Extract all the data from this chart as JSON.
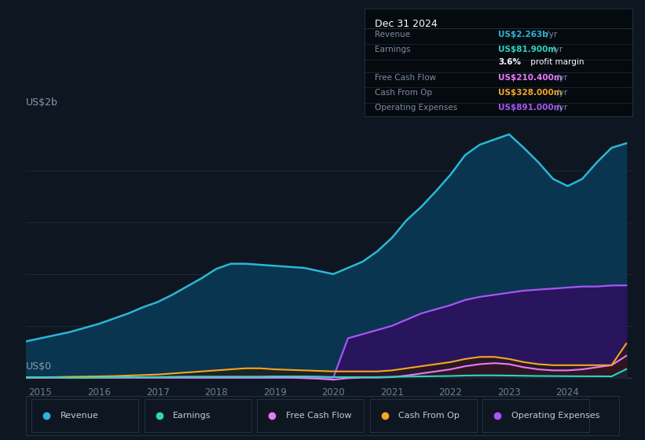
{
  "background_color": "#0e1621",
  "chart_bg_color": "#0e1621",
  "fig_width": 8.21,
  "fig_height": 5.6,
  "ylabel_text": "US$2b",
  "ylabel2_text": "US$0",
  "x_ticks": [
    2015,
    2016,
    2017,
    2018,
    2019,
    2020,
    2021,
    2022,
    2023,
    2024
  ],
  "years": [
    2014.75,
    2015.0,
    2015.25,
    2015.5,
    2015.75,
    2016.0,
    2016.25,
    2016.5,
    2016.75,
    2017.0,
    2017.25,
    2017.5,
    2017.75,
    2018.0,
    2018.25,
    2018.5,
    2018.75,
    2019.0,
    2019.25,
    2019.5,
    2019.75,
    2020.0,
    2020.25,
    2020.5,
    2020.75,
    2021.0,
    2021.25,
    2021.5,
    2021.75,
    2022.0,
    2022.25,
    2022.5,
    2022.75,
    2023.0,
    2023.25,
    2023.5,
    2023.75,
    2024.0,
    2024.25,
    2024.5,
    2024.75,
    2025.0
  ],
  "revenue": [
    0.35,
    0.38,
    0.41,
    0.44,
    0.48,
    0.52,
    0.57,
    0.62,
    0.68,
    0.73,
    0.8,
    0.88,
    0.96,
    1.05,
    1.1,
    1.1,
    1.09,
    1.08,
    1.07,
    1.06,
    1.03,
    1.0,
    1.06,
    1.12,
    1.22,
    1.35,
    1.52,
    1.65,
    1.8,
    1.96,
    2.15,
    2.25,
    2.3,
    2.35,
    2.22,
    2.08,
    1.92,
    1.85,
    1.92,
    2.08,
    2.22,
    2.263
  ],
  "earnings": [
    0.003,
    0.003,
    0.002,
    -0.002,
    -0.003,
    0.001,
    0.003,
    0.005,
    0.005,
    0.006,
    0.008,
    0.01,
    0.01,
    0.01,
    0.01,
    0.01,
    0.01,
    0.012,
    0.012,
    0.012,
    0.01,
    0.005,
    0.005,
    0.005,
    0.005,
    0.008,
    0.01,
    0.012,
    0.014,
    0.016,
    0.02,
    0.022,
    0.022,
    0.02,
    0.018,
    0.016,
    0.015,
    0.014,
    0.013,
    0.013,
    0.012,
    0.0819
  ],
  "free_cash_flow": [
    0.0,
    0.0,
    0.0,
    0.0,
    0.0,
    0.0,
    0.0,
    0.0,
    0.0,
    0.0,
    0.0,
    0.0,
    0.0,
    0.0,
    0.0,
    0.0,
    0.0,
    0.0,
    0.0,
    -0.005,
    -0.01,
    -0.02,
    -0.005,
    0.0,
    0.0,
    0.005,
    0.02,
    0.04,
    0.06,
    0.08,
    0.11,
    0.13,
    0.14,
    0.13,
    0.1,
    0.08,
    0.07,
    0.07,
    0.08,
    0.1,
    0.12,
    0.2104
  ],
  "cash_from_op": [
    0.003,
    0.003,
    0.005,
    0.008,
    0.01,
    0.012,
    0.015,
    0.02,
    0.025,
    0.03,
    0.04,
    0.05,
    0.06,
    0.07,
    0.08,
    0.09,
    0.09,
    0.08,
    0.075,
    0.07,
    0.065,
    0.06,
    0.06,
    0.06,
    0.06,
    0.07,
    0.09,
    0.11,
    0.13,
    0.15,
    0.18,
    0.2,
    0.2,
    0.18,
    0.15,
    0.13,
    0.12,
    0.12,
    0.12,
    0.12,
    0.12,
    0.328
  ],
  "operating_expenses": [
    0.0,
    0.0,
    0.0,
    0.0,
    0.0,
    0.0,
    0.0,
    0.0,
    0.0,
    0.0,
    0.0,
    0.0,
    0.0,
    0.0,
    0.0,
    0.0,
    0.0,
    0.0,
    0.0,
    0.0,
    0.0,
    0.0,
    0.38,
    0.42,
    0.46,
    0.5,
    0.56,
    0.62,
    0.66,
    0.7,
    0.75,
    0.78,
    0.8,
    0.82,
    0.84,
    0.85,
    0.86,
    0.87,
    0.88,
    0.88,
    0.89,
    0.891
  ],
  "revenue_color": "#2ab7d6",
  "revenue_fill_color": "#0a3550",
  "earnings_color": "#2dd4bf",
  "earnings_fill_color": "#0a3040",
  "free_cash_flow_color": "#e879f9",
  "free_cash_flow_fill_color": "#3d1045",
  "cash_from_op_color": "#f5a623",
  "cash_from_op_fill_color": "#2a1a05",
  "operating_expenses_color": "#a855f7",
  "operating_expenses_fill_color": "#2e1060",
  "grid_line_color": "#1e2d3d",
  "zero_line_color": "#2a3d50",
  "info_box": {
    "title": "Dec 31 2024",
    "rows": [
      {
        "label": "Revenue",
        "value": "US$2.263b",
        "value_color": "#2ab7d6"
      },
      {
        "label": "Earnings",
        "value": "US$81.900m",
        "value_color": "#2dd4bf"
      },
      {
        "label": "",
        "value": "3.6% profit margin",
        "value_color": "#ffffff",
        "bold_part": "3.6%"
      },
      {
        "label": "Free Cash Flow",
        "value": "US$210.400m",
        "value_color": "#e879f9"
      },
      {
        "label": "Cash From Op",
        "value": "US$328.000m",
        "value_color": "#f5a623"
      },
      {
        "label": "Operating Expenses",
        "value": "US$891.000m",
        "value_color": "#a855f7"
      }
    ]
  },
  "legend": [
    {
      "label": "Revenue",
      "color": "#2ab7d6"
    },
    {
      "label": "Earnings",
      "color": "#2dd4bf"
    },
    {
      "label": "Free Cash Flow",
      "color": "#e879f9"
    },
    {
      "label": "Cash From Op",
      "color": "#f5a623"
    },
    {
      "label": "Operating Expenses",
      "color": "#a855f7"
    }
  ]
}
